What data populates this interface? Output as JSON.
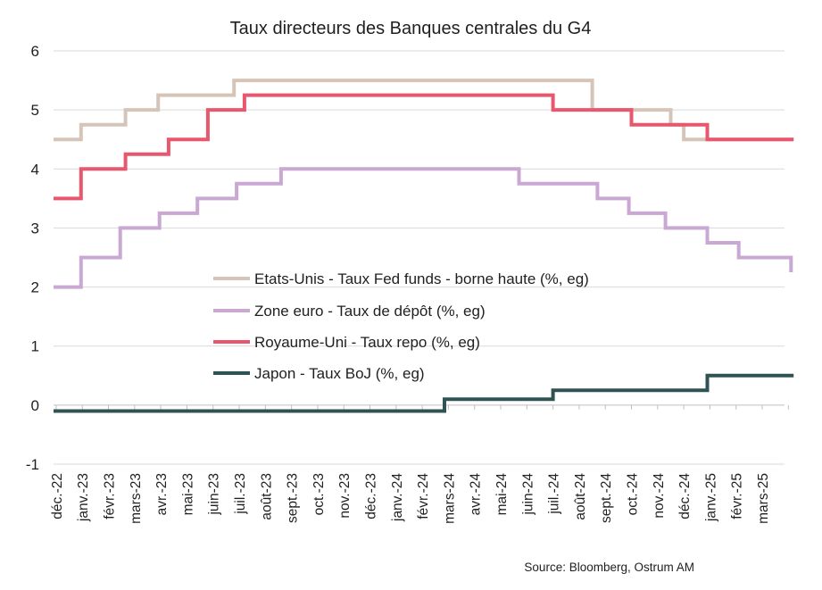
{
  "chart_data": {
    "type": "line",
    "title": "Taux directeurs des Banques centrales du G4",
    "ylim": [
      -1,
      6
    ],
    "yticks": [
      "6",
      "5",
      "4",
      "3",
      "2",
      "1",
      "0",
      "-1"
    ],
    "x_labels": [
      "déc.-22",
      "janv.-23",
      "févr.-23",
      "mars-23",
      "avr.-23",
      "mai-23",
      "juin-23",
      "juil.-23",
      "août-23",
      "sept.-23",
      "oct.-23",
      "nov.-23",
      "déc.-23",
      "janv.-24",
      "févr.-24",
      "mars-24",
      "avr.-24",
      "mai-24",
      "juin-24",
      "juil.-24",
      "août-24",
      "sept.-24",
      "oct.-24",
      "nov.-24",
      "déc.-24",
      "janv.-25",
      "févr.-25",
      "mars-25"
    ],
    "x_range": [
      0,
      28.3
    ],
    "grid": true,
    "legend_position": "center",
    "source": "Source: Bloomberg,  Ostrum AM",
    "series": [
      {
        "name": "Etats-Unis - Taux Fed funds - borne haute  (%, eg)",
        "color": "#d6c4b8",
        "steps": [
          [
            0,
            4.5
          ],
          [
            1.05,
            4.75
          ],
          [
            2.75,
            5.0
          ],
          [
            4.0,
            5.25
          ],
          [
            6.9,
            5.5
          ],
          [
            20.6,
            5.0
          ],
          [
            23.6,
            4.75
          ],
          [
            24.1,
            4.5
          ],
          [
            28.3,
            4.5
          ]
        ]
      },
      {
        "name": "Zone euro - Taux de dépôt  (%, eg)",
        "color": "#c9a8d4",
        "steps": [
          [
            0,
            2.0
          ],
          [
            1.05,
            2.5
          ],
          [
            2.55,
            3.0
          ],
          [
            4.05,
            3.25
          ],
          [
            5.5,
            3.5
          ],
          [
            7.0,
            3.75
          ],
          [
            8.7,
            4.0
          ],
          [
            17.8,
            3.75
          ],
          [
            20.8,
            3.5
          ],
          [
            22.0,
            3.25
          ],
          [
            23.4,
            3.0
          ],
          [
            25.0,
            2.75
          ],
          [
            26.2,
            2.5
          ],
          [
            28.2,
            2.25
          ]
        ]
      },
      {
        "name": "Royaume-Uni - Taux repo  (%, eg)",
        "color": "#e8576e",
        "steps": [
          [
            0,
            3.5
          ],
          [
            1.05,
            4.0
          ],
          [
            2.75,
            4.25
          ],
          [
            4.4,
            4.5
          ],
          [
            5.9,
            5.0
          ],
          [
            7.3,
            5.25
          ],
          [
            19.1,
            5.0
          ],
          [
            22.1,
            4.75
          ],
          [
            25.0,
            4.5
          ],
          [
            28.3,
            4.5
          ]
        ]
      },
      {
        "name": "Japon - Taux BoJ  (%, eg)",
        "color": "#2f5352",
        "steps": [
          [
            0,
            -0.1
          ],
          [
            14.95,
            0.1
          ],
          [
            19.1,
            0.25
          ],
          [
            25.0,
            0.5
          ],
          [
            28.3,
            0.5
          ]
        ]
      }
    ]
  }
}
